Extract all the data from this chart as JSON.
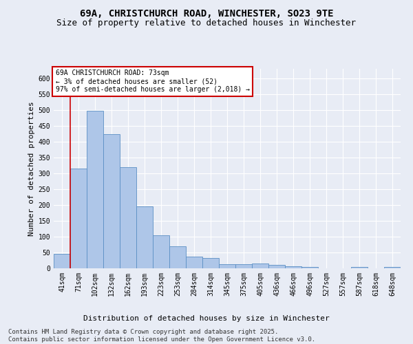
{
  "title_line1": "69A, CHRISTCHURCH ROAD, WINCHESTER, SO23 9TE",
  "title_line2": "Size of property relative to detached houses in Winchester",
  "xlabel": "Distribution of detached houses by size in Winchester",
  "ylabel": "Number of detached properties",
  "categories": [
    "41sqm",
    "71sqm",
    "102sqm",
    "132sqm",
    "162sqm",
    "193sqm",
    "223sqm",
    "253sqm",
    "284sqm",
    "314sqm",
    "345sqm",
    "375sqm",
    "405sqm",
    "436sqm",
    "466sqm",
    "496sqm",
    "527sqm",
    "557sqm",
    "587sqm",
    "618sqm",
    "648sqm"
  ],
  "values": [
    46,
    314,
    497,
    423,
    320,
    195,
    104,
    70,
    38,
    33,
    13,
    13,
    15,
    10,
    7,
    4,
    0,
    0,
    4,
    0,
    4
  ],
  "bar_color": "#aec6e8",
  "bar_edge_color": "#5a8fc4",
  "vline_color": "#cc0000",
  "annotation_text": "69A CHRISTCHURCH ROAD: 73sqm\n← 3% of detached houses are smaller (52)\n97% of semi-detached houses are larger (2,018) →",
  "annotation_box_color": "#ffffff",
  "annotation_box_edge_color": "#cc0000",
  "ylim": [
    0,
    630
  ],
  "yticks": [
    0,
    50,
    100,
    150,
    200,
    250,
    300,
    350,
    400,
    450,
    500,
    550,
    600
  ],
  "background_color": "#e8ecf5",
  "plot_bg_color": "#e8ecf5",
  "grid_color": "#ffffff",
  "footer_text": "Contains HM Land Registry data © Crown copyright and database right 2025.\nContains public sector information licensed under the Open Government Licence v3.0.",
  "title_fontsize": 10,
  "subtitle_fontsize": 9,
  "axis_label_fontsize": 8,
  "tick_fontsize": 7,
  "annotation_fontsize": 7,
  "footer_fontsize": 6.5
}
